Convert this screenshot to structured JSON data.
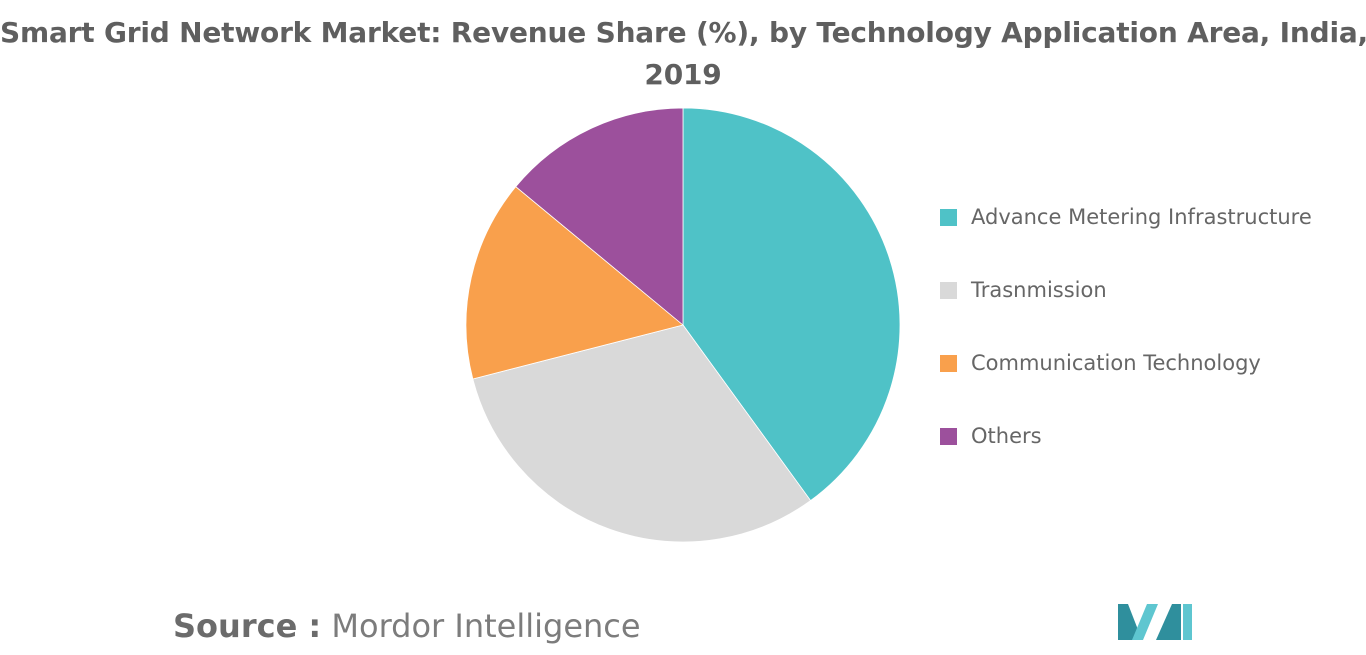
{
  "title": {
    "line1": "Smart Grid Network Market: Revenue Share (%), by Technology Application Area, India,",
    "line2": "2019"
  },
  "source": {
    "prefix": "Source :",
    "name": "Mordor Intelligence"
  },
  "colors": {
    "advance_metering": "#4fc2c7",
    "transmission": "#d9d9d9",
    "communication": "#f9a04c",
    "others": "#9c509c",
    "title_text": "#5f5f5f",
    "legend_text": "#666666",
    "logo_teal": "#2f8f9d",
    "logo_light": "#5ec6d0"
  },
  "chart_data": {
    "type": "pie",
    "categories": [
      "Advance Metering Infrastructure",
      "Trasnmission",
      "Communication Technology",
      "Others"
    ],
    "values": [
      40,
      31,
      15,
      14
    ],
    "colors": [
      "#4fc2c7",
      "#d9d9d9",
      "#f9a04c",
      "#9c509c"
    ],
    "start_angle_deg": 0,
    "direction": "clockwise",
    "title": "Smart Grid Network Market: Revenue Share (%), by Technology Application Area, India, 2019",
    "legend_position": "right"
  }
}
